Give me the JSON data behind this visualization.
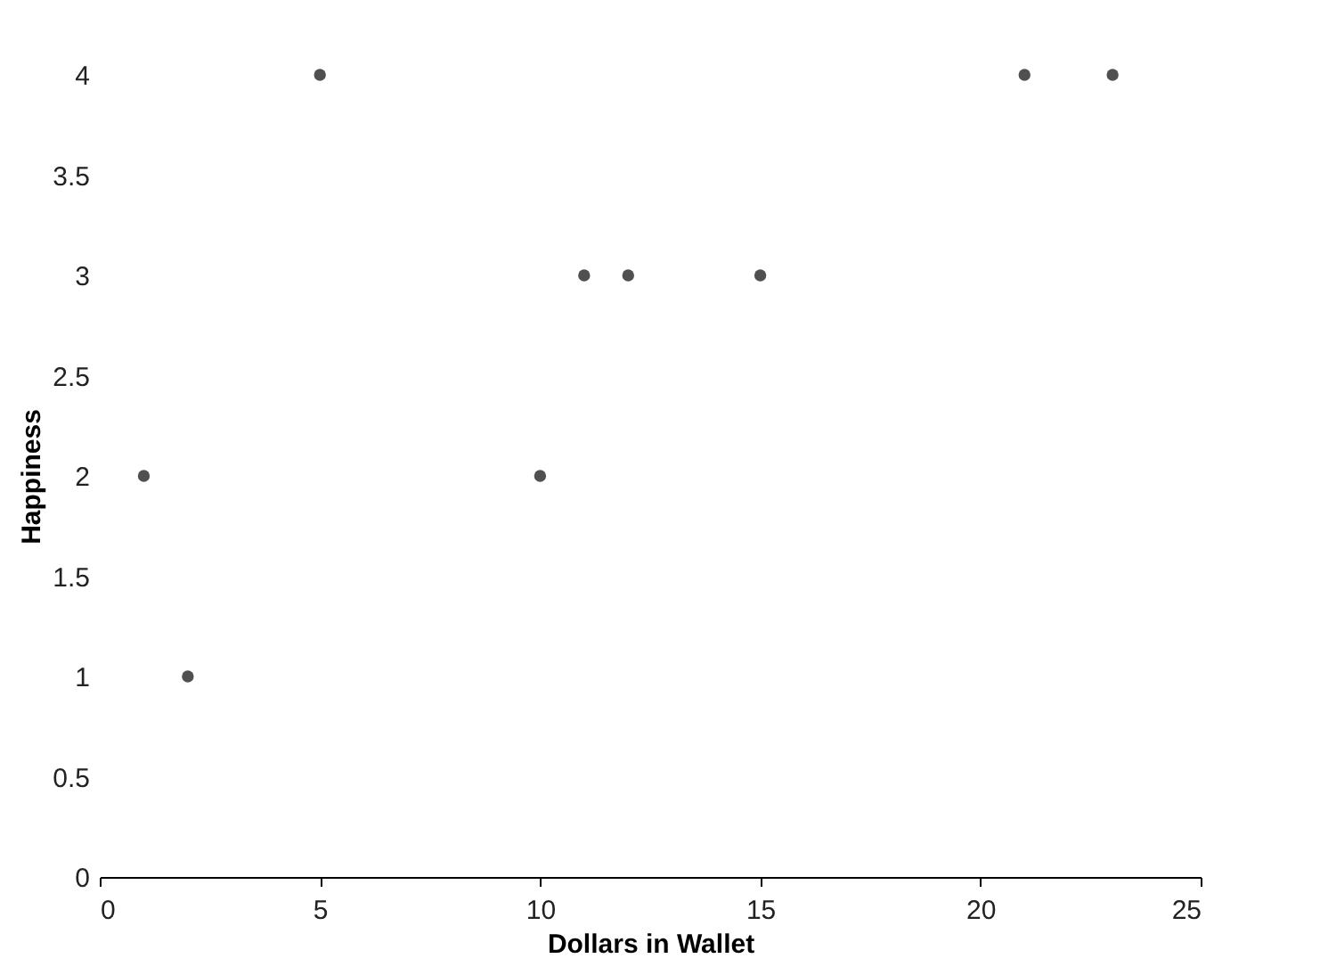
{
  "chart_data": {
    "type": "scatter",
    "xlabel": "Dollars in Wallet",
    "ylabel": "Happiness",
    "x": [
      1,
      2,
      5,
      10,
      11,
      12,
      15,
      21,
      23
    ],
    "series": [
      {
        "color": "#505050",
        "values": [
          2,
          1,
          4,
          2,
          3,
          3,
          3,
          4,
          4
        ]
      }
    ],
    "xlim": [
      0,
      25
    ],
    "xticks": [
      0,
      5,
      10,
      15,
      20,
      25
    ],
    "ylim": [
      0,
      4
    ],
    "yticks": [
      0,
      0.5,
      1,
      1.5,
      2,
      2.5,
      3,
      3.5,
      4
    ],
    "grid": false
  }
}
